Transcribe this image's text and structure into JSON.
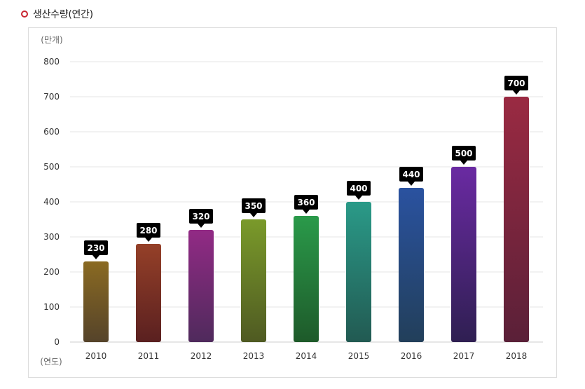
{
  "title": "생산수량(연간)",
  "colors": {
    "title_marker": "#c8242f",
    "grid": "#e6e6e6",
    "axis": "#cccccc",
    "callout_bg": "#000000",
    "callout_text": "#ffffff"
  },
  "chart_data": {
    "type": "bar",
    "ylabel": "(만개)",
    "xlabel": "(연도)",
    "ylim": [
      0,
      800
    ],
    "yticks": [
      0,
      100,
      200,
      300,
      400,
      500,
      600,
      700,
      800
    ],
    "grid": true,
    "data_labels": "callout above bar",
    "categories": [
      "2010",
      "2011",
      "2012",
      "2013",
      "2014",
      "2015",
      "2016",
      "2017",
      "2018"
    ],
    "values": [
      230,
      280,
      320,
      350,
      360,
      400,
      440,
      500,
      700
    ],
    "bar_colors": [
      [
        "#8a6a22",
        "#55432a"
      ],
      [
        "#954028",
        "#5a2020"
      ],
      [
        "#922a85",
        "#4f2a5c"
      ],
      [
        "#7a9a2a",
        "#4f5a22"
      ],
      [
        "#2a9a4a",
        "#1e5a2a"
      ],
      [
        "#2a9a88",
        "#225a52"
      ],
      [
        "#2a52a0",
        "#223f5a"
      ],
      [
        "#6a2aa2",
        "#2f1f52"
      ],
      [
        "#9a2a42",
        "#5a2038"
      ]
    ]
  }
}
